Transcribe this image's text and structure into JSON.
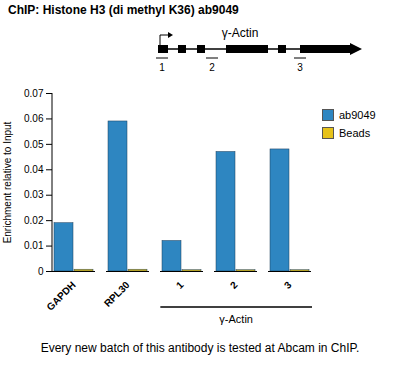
{
  "chart_data": {
    "type": "bar",
    "title": "ChIP: Histone H3 (di methyl K36) ab9049",
    "caption": "Every new batch of this antibody is tested at Abcam in ChIP.",
    "y_label": "Enrichment relative to Input",
    "categories": [
      "GAPDH",
      "RPL30",
      "1",
      "2",
      "3"
    ],
    "series": [
      {
        "name": "ab9049",
        "color": "#2e86c1",
        "values": [
          0.019,
          0.059,
          0.012,
          0.047,
          0.048
        ]
      },
      {
        "name": "Beads",
        "color": "#e6c21a",
        "values": [
          0.0007,
          0.0007,
          0.0005,
          0.0005,
          0.0005
        ]
      }
    ],
    "ylim": [
      0,
      0.07
    ],
    "yticks": [
      0,
      0.01,
      0.02,
      0.03,
      0.04,
      0.05,
      0.06,
      0.07
    ],
    "grid": false,
    "legend": "right",
    "category_group": {
      "label": "γ-Actin",
      "categories": [
        "1",
        "2",
        "3"
      ]
    },
    "gene_diagram": {
      "label": "γ-Actin",
      "regions": [
        "1",
        "2",
        "3"
      ]
    }
  }
}
